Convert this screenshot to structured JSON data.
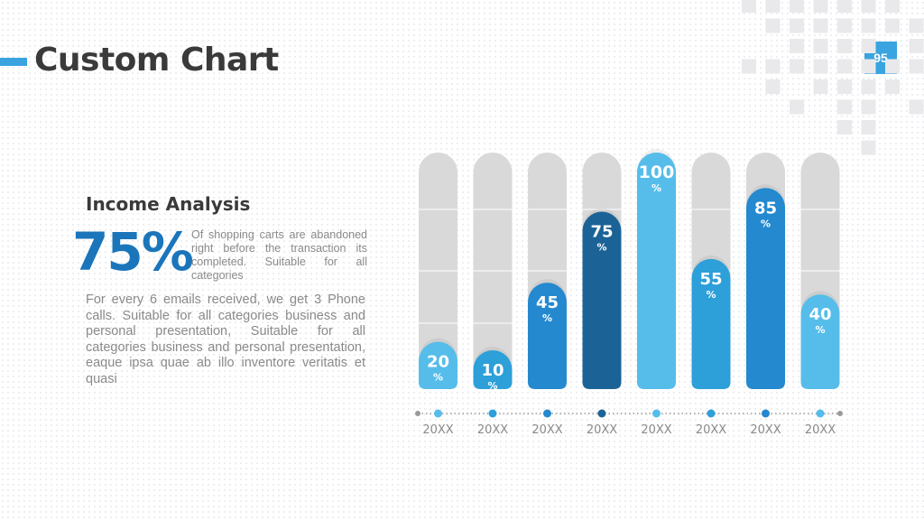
{
  "header": {
    "title": "Custom Chart",
    "page_number": "95",
    "accent_color": "#3aa4e0"
  },
  "left_panel": {
    "subtitle": "Income Analysis",
    "big_percent": "75%",
    "percent_description": "Of shopping carts are abandoned right before the transaction its completed. Suitable for all categories",
    "paragraph": "For every 6 emails received, we get 3 Phone calls. Suitable for all categories business and personal presentation, Suitable for all categories business and personal presentation, eaque ipsa quae ab illo inventore veritatis et quasi"
  },
  "chart_data": {
    "type": "bar",
    "categories": [
      "20XX",
      "20XX",
      "20XX",
      "20XX",
      "20XX",
      "20XX",
      "20XX",
      "20XX"
    ],
    "values": [
      20,
      10,
      45,
      75,
      100,
      55,
      85,
      40
    ],
    "value_suffix": "%",
    "ylim": [
      0,
      100
    ],
    "bar_colors": [
      "#56bdea",
      "#2d9fd9",
      "#2489cf",
      "#1b6396",
      "#56bdea",
      "#2d9fd9",
      "#2489cf",
      "#56bdea"
    ],
    "track_color": "#d9d9d9",
    "grid": false,
    "title": "",
    "xlabel": "",
    "ylabel": ""
  }
}
